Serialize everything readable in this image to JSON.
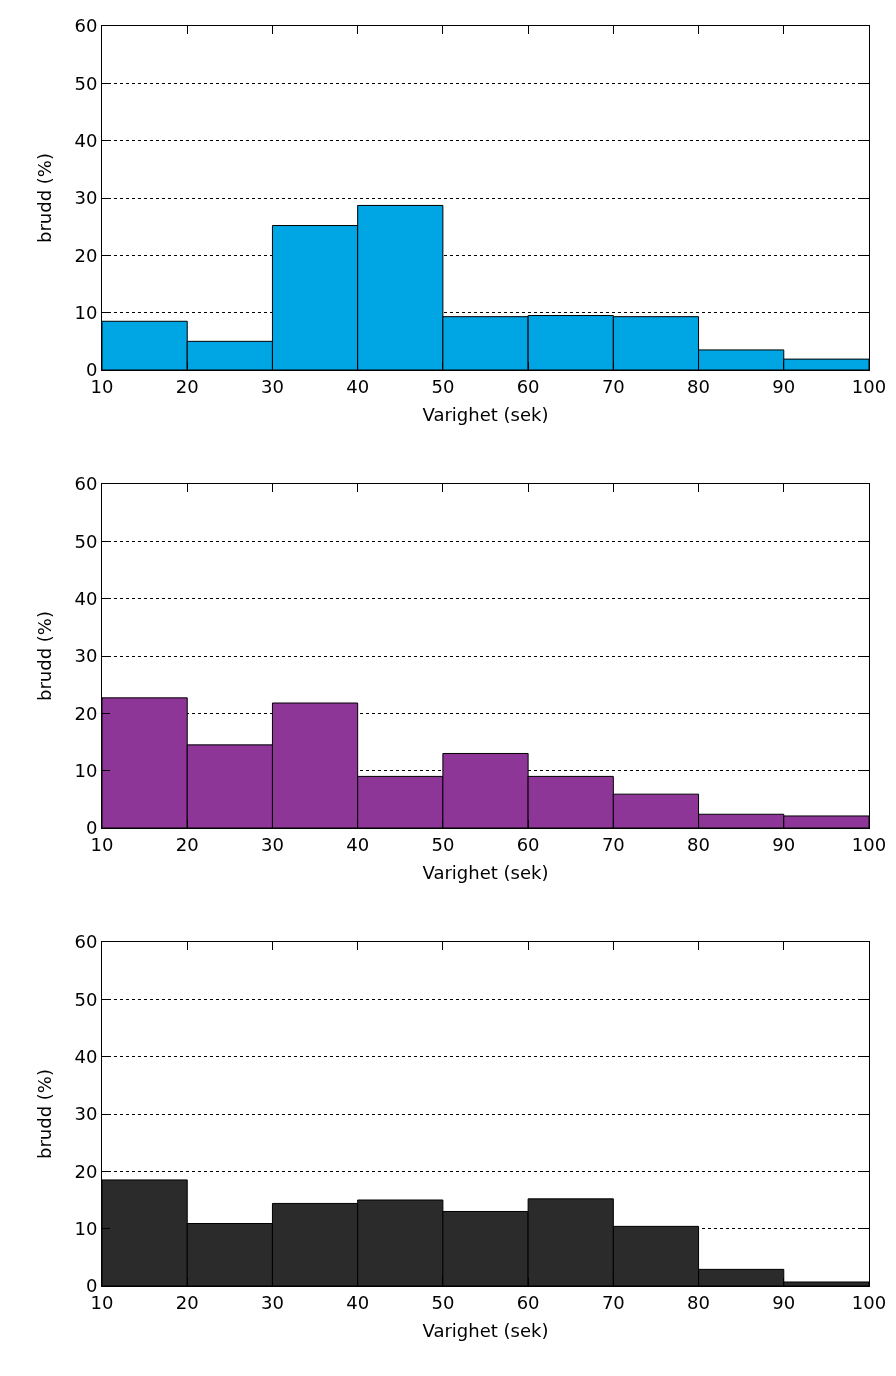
{
  "chart_data": [
    {
      "type": "histogram",
      "xlabel": "Varighet (sek)",
      "ylabel": "brudd (%)",
      "bins": [
        10,
        20,
        30,
        40,
        50,
        60,
        70,
        80,
        90,
        100
      ],
      "values": [
        8.5,
        5.0,
        25.2,
        28.7,
        9.3,
        9.5,
        9.3,
        3.5,
        1.9
      ],
      "color": "#00a5e3",
      "xlim": [
        10,
        100
      ],
      "xticks": [
        10,
        20,
        30,
        40,
        50,
        60,
        70,
        80,
        90,
        100
      ],
      "ylim": [
        0,
        60
      ],
      "yticks": [
        0,
        10,
        20,
        30,
        40,
        50,
        60
      ],
      "grid": "y"
    },
    {
      "type": "histogram",
      "xlabel": "Varighet (sek)",
      "ylabel": "brudd (%)",
      "bins": [
        10,
        20,
        30,
        40,
        50,
        60,
        70,
        80,
        90,
        100
      ],
      "values": [
        22.7,
        14.5,
        21.8,
        9.0,
        13.0,
        9.0,
        5.9,
        2.4,
        2.1
      ],
      "color": "#8e3598",
      "xlim": [
        10,
        100
      ],
      "xticks": [
        10,
        20,
        30,
        40,
        50,
        60,
        70,
        80,
        90,
        100
      ],
      "ylim": [
        0,
        60
      ],
      "yticks": [
        0,
        10,
        20,
        30,
        40,
        50,
        60
      ],
      "grid": "y"
    },
    {
      "type": "histogram",
      "xlabel": "Varighet (sek)",
      "ylabel": "brudd (%)",
      "bins": [
        10,
        20,
        30,
        40,
        50,
        60,
        70,
        80,
        90,
        100
      ],
      "values": [
        18.5,
        10.9,
        14.4,
        15.0,
        13.0,
        15.2,
        10.4,
        2.9,
        0.7
      ],
      "color": "#2b2b2b",
      "xlim": [
        10,
        100
      ],
      "xticks": [
        10,
        20,
        30,
        40,
        50,
        60,
        70,
        80,
        90,
        100
      ],
      "ylim": [
        0,
        60
      ],
      "yticks": [
        0,
        10,
        20,
        30,
        40,
        50,
        60
      ],
      "grid": "y"
    }
  ]
}
